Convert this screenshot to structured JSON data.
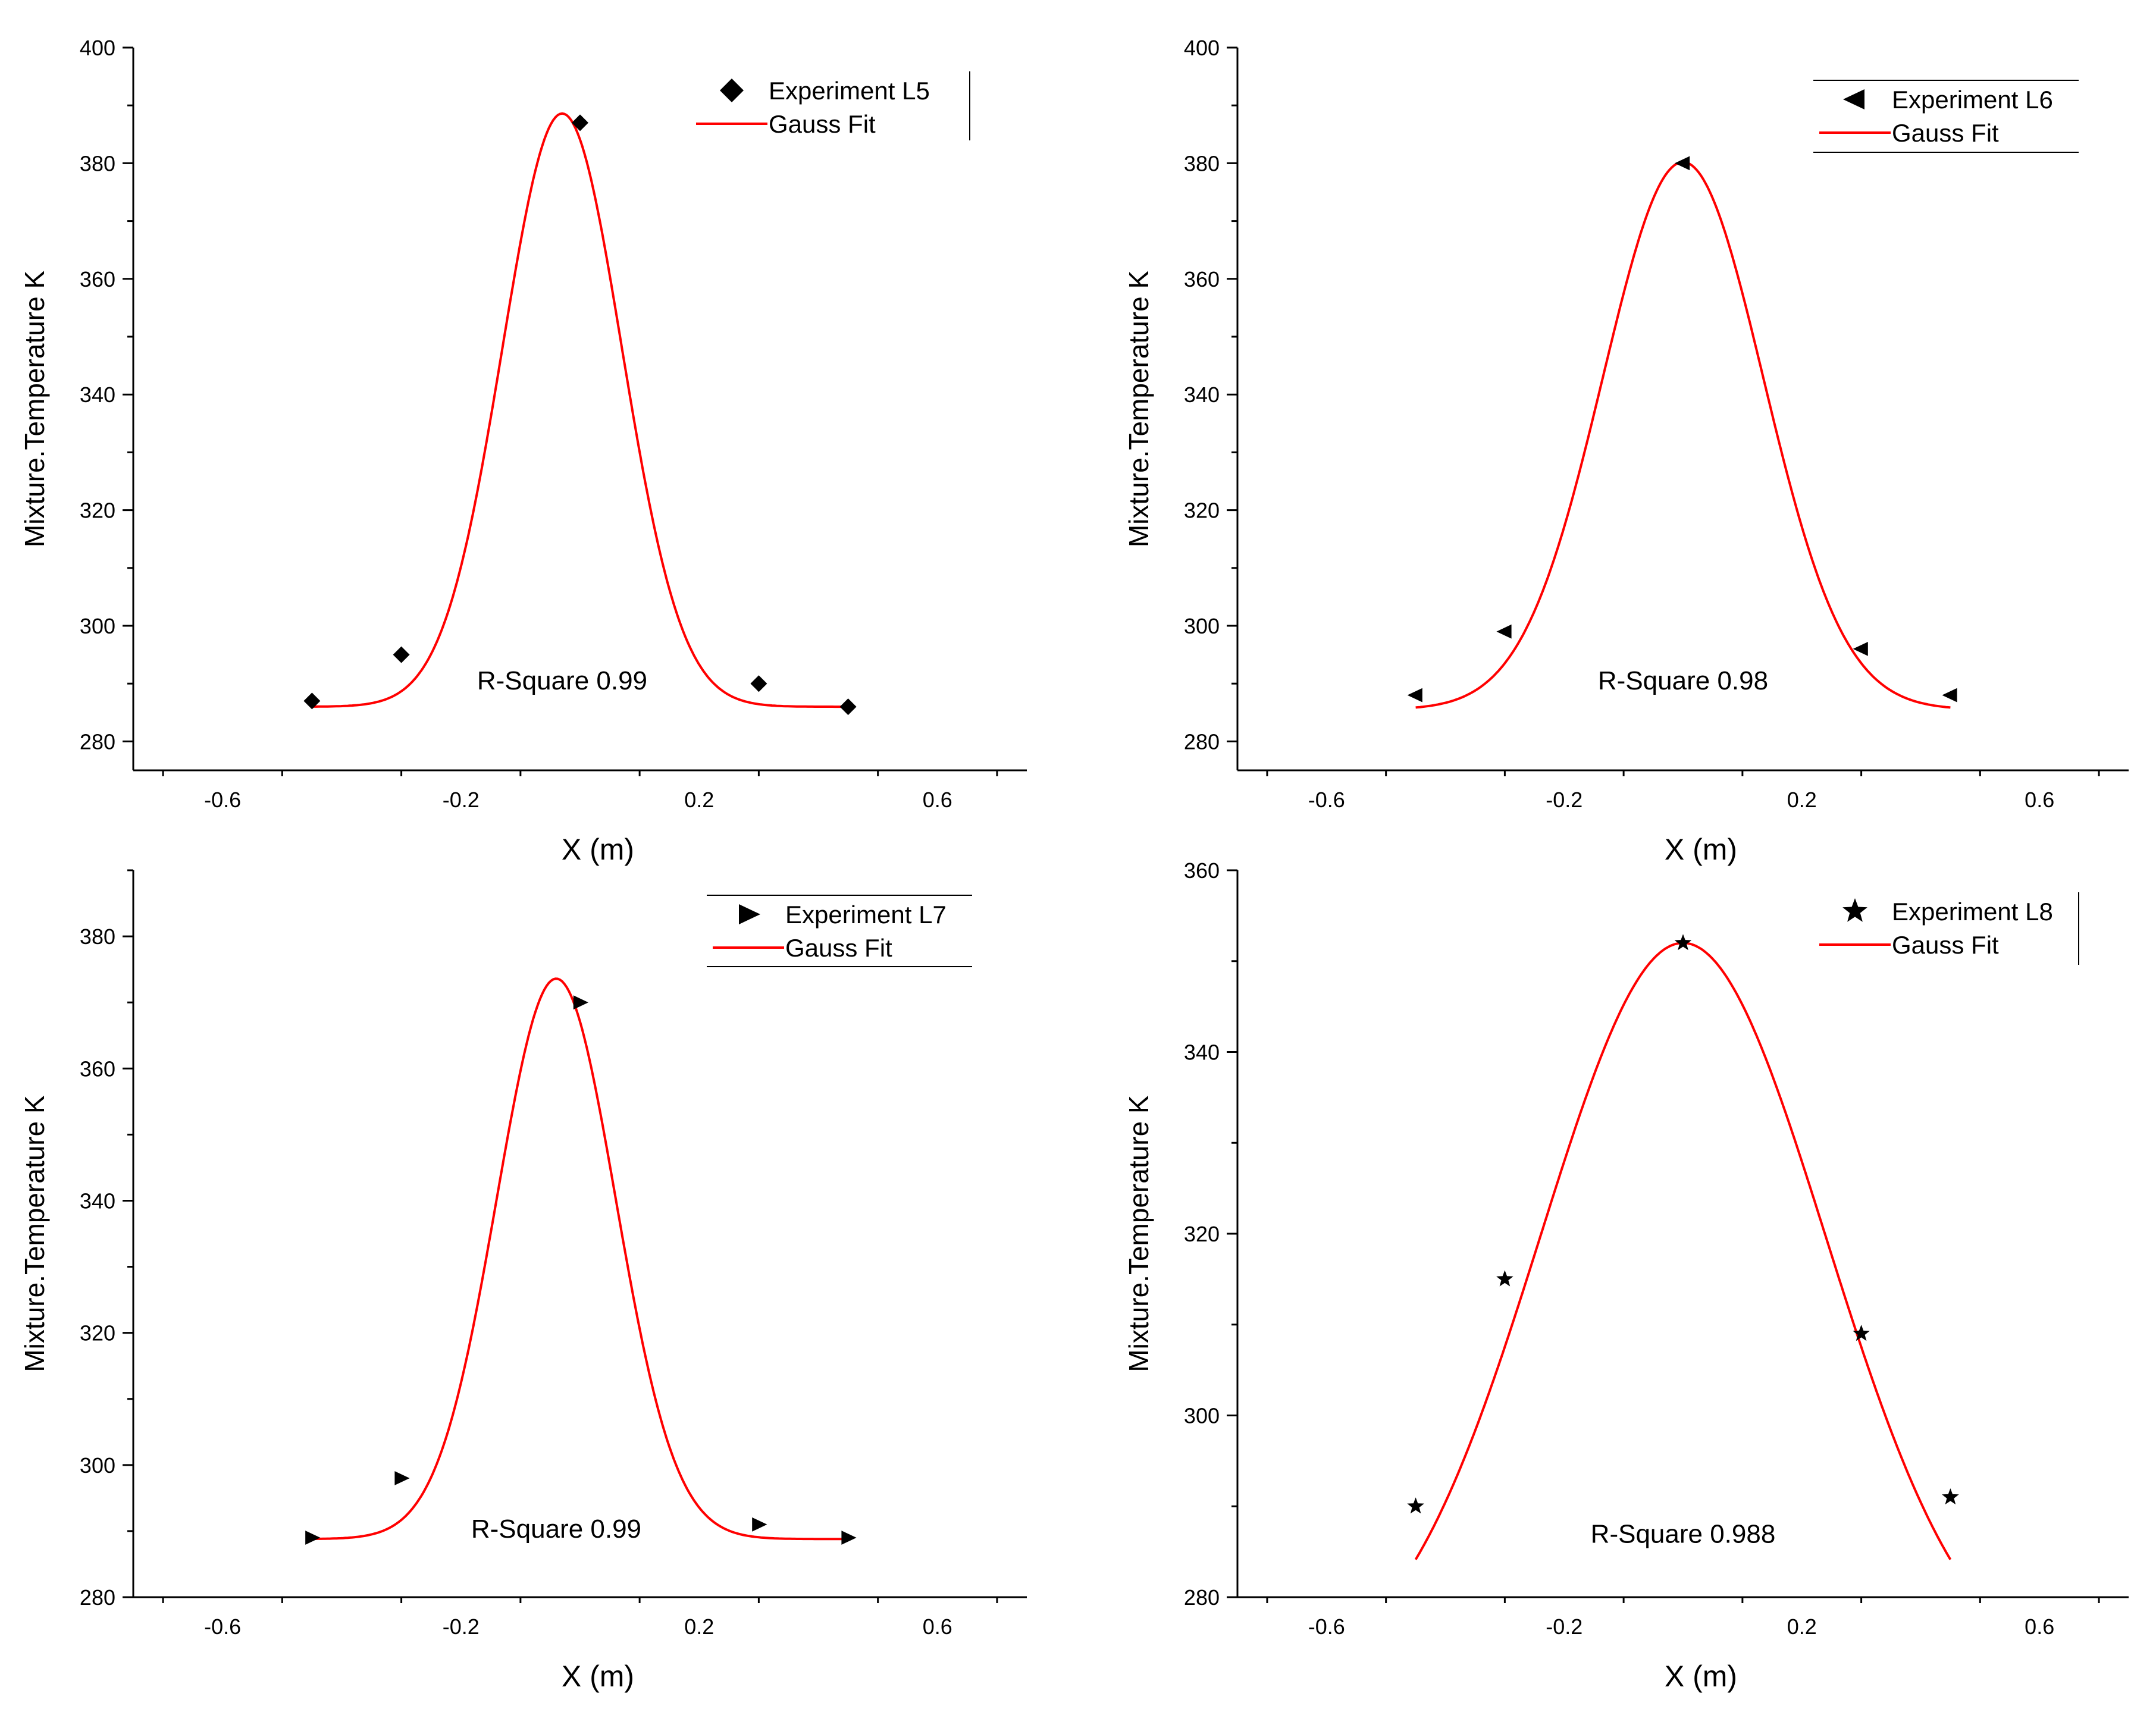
{
  "colors": {
    "fit": "#ff0000",
    "marker": "#000000",
    "axis": "#000000"
  },
  "chart_data": [
    {
      "type": "scatter",
      "id": "L5",
      "xlabel": "X (m)",
      "ylabel": "Mixture.Temperature K",
      "xlim": [
        -0.75,
        0.75
      ],
      "ylim": [
        275,
        400
      ],
      "xticks": [
        -0.6,
        -0.2,
        0.2,
        0.6
      ],
      "xtick_labels": [
        "-0.6",
        "-0.2",
        "0.2",
        "0.6"
      ],
      "yticks": [
        280,
        300,
        320,
        340,
        360,
        380,
        400
      ],
      "ytick_labels": [
        "280",
        "300",
        "320",
        "340",
        "360",
        "380",
        "400"
      ],
      "marker": "diamond",
      "legend_position": "top-right",
      "series": [
        {
          "name": "Experiment L5",
          "x": [
            -0.45,
            -0.3,
            0.0,
            0.3,
            0.45
          ],
          "y": [
            287,
            295,
            387,
            290,
            286
          ]
        },
        {
          "name": "Gauss Fit",
          "fit": {
            "y0": 286,
            "amp": 102.6,
            "center": -0.03,
            "sigma": 0.1,
            "xmin": -0.45,
            "xmax": 0.45
          }
        }
      ],
      "annotation": {
        "text": "R-Square 0.99",
        "x": -0.03,
        "y": 289
      }
    },
    {
      "type": "scatter",
      "id": "L6",
      "xlabel": "X (m)",
      "ylabel": "Mixture.Temperature K",
      "xlim": [
        -0.75,
        0.75
      ],
      "ylim": [
        275,
        400
      ],
      "xticks": [
        -0.6,
        -0.2,
        0.2,
        0.6
      ],
      "xtick_labels": [
        "-0.6",
        "-0.2",
        "0.2",
        "0.6"
      ],
      "yticks": [
        280,
        300,
        320,
        340,
        360,
        380,
        400
      ],
      "ytick_labels": [
        "280",
        "300",
        "320",
        "340",
        "360",
        "380",
        "400"
      ],
      "marker": "triangle-left",
      "legend_position": "top-right",
      "series": [
        {
          "name": "Experiment L6",
          "x": [
            -0.45,
            -0.3,
            0.0,
            0.3,
            0.45
          ],
          "y": [
            288,
            299,
            380,
            296,
            288
          ]
        },
        {
          "name": "Gauss Fit",
          "fit": {
            "y0": 285.5,
            "amp": 94.7,
            "center": 0.0,
            "sigma": 0.135,
            "xmin": -0.45,
            "xmax": 0.45
          }
        }
      ],
      "annotation": {
        "text": "R-Square 0.98",
        "x": 0.0,
        "y": 289
      }
    },
    {
      "type": "scatter",
      "id": "L7",
      "xlabel": "X (m)",
      "ylabel": "Mixture.Temperature K",
      "xlim": [
        -0.75,
        0.75
      ],
      "ylim": [
        280,
        390
      ],
      "xticks": [
        -0.6,
        -0.2,
        0.2,
        0.6
      ],
      "xtick_labels": [
        "-0.6",
        "-0.2",
        "0.2",
        "0.6"
      ],
      "yticks": [
        280,
        300,
        320,
        340,
        360,
        380
      ],
      "ytick_labels": [
        "280",
        "300",
        "320",
        "340",
        "360",
        "380"
      ],
      "marker": "triangle-right",
      "legend_position": "top-right",
      "series": [
        {
          "name": "Experiment L7",
          "x": [
            -0.45,
            -0.3,
            0.0,
            0.3,
            0.45
          ],
          "y": [
            289,
            298,
            370,
            291,
            289
          ]
        },
        {
          "name": "Gauss Fit",
          "fit": {
            "y0": 288.8,
            "amp": 84.8,
            "center": -0.04,
            "sigma": 0.1,
            "xmin": -0.45,
            "xmax": 0.45
          }
        }
      ],
      "annotation": {
        "text": "R-Square 0.99",
        "x": -0.04,
        "y": 289
      }
    },
    {
      "type": "scatter",
      "id": "L8",
      "xlabel": "X (m)",
      "ylabel": "Mixture.Temperature K",
      "xlim": [
        -0.75,
        0.75
      ],
      "ylim": [
        280,
        360
      ],
      "xticks": [
        -0.6,
        -0.2,
        0.2,
        0.6
      ],
      "xtick_labels": [
        "-0.6",
        "-0.2",
        "0.2",
        "0.6"
      ],
      "yticks": [
        280,
        300,
        320,
        340,
        360
      ],
      "ytick_labels": [
        "280",
        "300",
        "320",
        "340",
        "360"
      ],
      "marker": "star",
      "legend_position": "top-right",
      "series": [
        {
          "name": "Experiment L8",
          "x": [
            -0.45,
            -0.3,
            0.0,
            0.3,
            0.45
          ],
          "y": [
            290,
            315,
            352,
            309,
            291
          ]
        },
        {
          "name": "Gauss Fit",
          "fit": {
            "y0": 270,
            "amp": 82,
            "center": 0.0,
            "sigma": 0.24,
            "xmin": -0.45,
            "xmax": 0.45
          }
        }
      ],
      "annotation": {
        "text": "R-Square 0.988",
        "x": 0.0,
        "y": 286
      }
    }
  ]
}
